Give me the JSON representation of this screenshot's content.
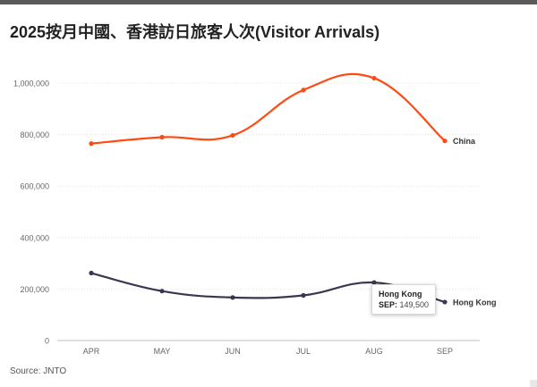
{
  "title": "2025按月中國、香港訪日旅客人次(Visitor Arrivals)",
  "source": "Source: JNTO",
  "tooltip": {
    "series": "Hong Kong",
    "category": "SEP",
    "separator": ":",
    "value": "149,500"
  },
  "colors": {
    "china": "#ff4a12",
    "hong_kong": "#3d3550",
    "grid": "#e2e2e2",
    "axis_text": "#666666"
  },
  "chart_data": {
    "type": "line",
    "title": "2025按月中國、香港訪日旅客人次(Visitor Arrivals)",
    "xlabel": "",
    "ylabel": "",
    "categories": [
      "APR",
      "MAY",
      "JUN",
      "JUL",
      "AUG",
      "SEP"
    ],
    "ylim": [
      0,
      1000000
    ],
    "y_ticks": [
      0,
      200000,
      400000,
      600000,
      800000,
      1000000
    ],
    "y_tick_labels": [
      "0",
      "200,000",
      "400,000",
      "600,000",
      "800,000",
      "1,000,000"
    ],
    "grid": true,
    "legend": "end-of-line labels",
    "series": [
      {
        "name": "China",
        "color": "#ff4a12",
        "values": [
          765100,
          789900,
          797000,
          973200,
          1019400,
          775500
        ]
      },
      {
        "name": "Hong Kong",
        "color": "#3d3550",
        "values": [
          262100,
          192100,
          167200,
          175300,
          225200,
          149500
        ]
      }
    ]
  }
}
